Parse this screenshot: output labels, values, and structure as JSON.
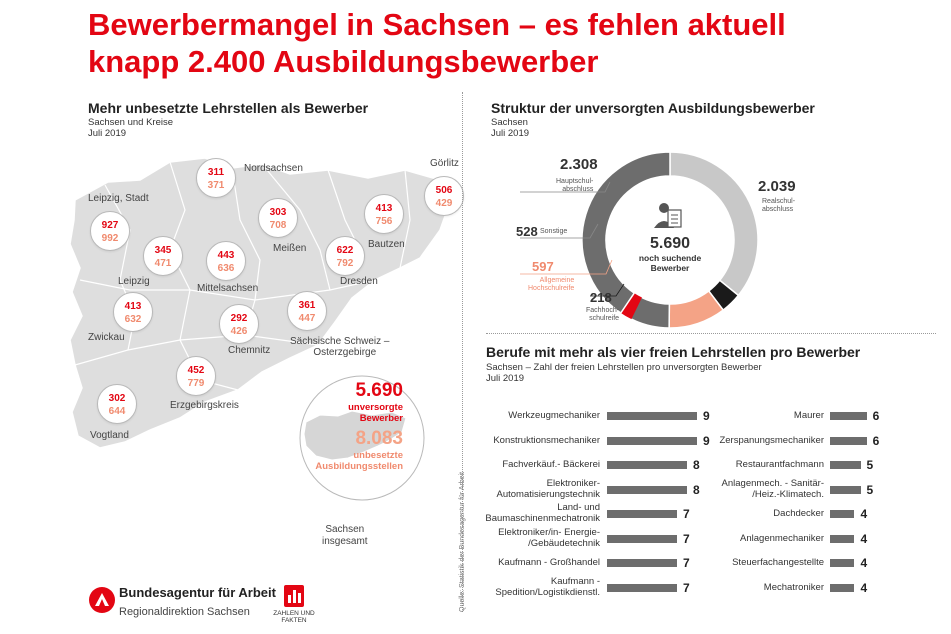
{
  "headline": {
    "line1": "Bewerbermangel in Sachsen – es fehlen aktuell",
    "line2": "knapp 2.400 Ausbildungsbewerber"
  },
  "left_section": {
    "title": "Mehr unbesetzte Lehrstellen als Bewerber",
    "subtitle1": "Sachsen und Kreise",
    "subtitle2": "Juli 2019",
    "regions": [
      {
        "name": "Nordsachsen",
        "bewerber": "311",
        "stellen": "371"
      },
      {
        "name": "Görlitz",
        "bewerber": "506",
        "stellen": "429"
      },
      {
        "name": "Leipzig, Stadt",
        "bewerber": "927",
        "stellen": "992"
      },
      {
        "name": "Meißen",
        "bewerber": "303",
        "stellen": "708"
      },
      {
        "name": "Bautzen",
        "bewerber": "413",
        "stellen": "756"
      },
      {
        "name": "Leipzig",
        "bewerber": "345",
        "stellen": "471"
      },
      {
        "name": "Mittelsachsen",
        "bewerber": "443",
        "stellen": "636"
      },
      {
        "name": "Dresden",
        "bewerber": "622",
        "stellen": "792"
      },
      {
        "name": "Zwickau",
        "bewerber": "413",
        "stellen": "632"
      },
      {
        "name": "Chemnitz",
        "bewerber": "292",
        "stellen": "426"
      },
      {
        "name": "Sächsische Schweiz – Osterzgebirge",
        "bewerber": "361",
        "stellen": "447"
      },
      {
        "name": "Erzgebirgskreis",
        "bewerber": "452",
        "stellen": "779"
      },
      {
        "name": "Vogtland",
        "bewerber": "302",
        "stellen": "644"
      }
    ],
    "label_ssog_1": "Sächsische Schweiz –",
    "label_ssog_2": "Osterzgebirge",
    "total": {
      "bewerber": "5.690",
      "bewerber_label1": "unversorgte",
      "bewerber_label2": "Bewerber",
      "stellen": "8.083",
      "stellen_label1": "unbesetzte",
      "stellen_label2": "Ausbildungsstellen",
      "region1": "Sachsen",
      "region2": "insgesamt"
    }
  },
  "source": "Quelle: Statistik der Bundesagentur für Arbeit",
  "logo": {
    "name": "Bundesagentur für Arbeit",
    "sub": "Regionaldirektion Sachsen",
    "zf1": "ZAHLEN UND",
    "zf2": "FAKTEN"
  },
  "colors": {
    "red": "#e30613",
    "pink": "#f4a386",
    "dark": "#6d6d6d",
    "light": "#c8c8c8",
    "black": "#1a1a1a"
  },
  "chart_data": [
    {
      "type": "pie",
      "title": "Struktur der unversorgten Ausbildungsbewerber",
      "subtitle1": "Sachsen",
      "subtitle2": "Juli 2019",
      "center_value": "5.690",
      "center_label1": "noch suchende",
      "center_label2": "Bewerber",
      "slices": [
        {
          "label1": "Realschul-",
          "label2": "abschluss",
          "value": 2039,
          "display": "2.039",
          "color": "#c8c8c8"
        },
        {
          "label1": "Fachhoch-",
          "label2": "schulreife",
          "value": 218,
          "display": "218",
          "color": "#1a1a1a"
        },
        {
          "label1": "Allgemeine",
          "label2": "Hochschulreife",
          "value": 597,
          "display": "597",
          "color": "#f4a386"
        },
        {
          "label1": "Sonstige",
          "label2": "",
          "value": 528,
          "display": "528",
          "color": "#6d6d6d"
        },
        {
          "label1": "Hauptschul-",
          "label2": "abschluss",
          "value": 2308,
          "display": "2.308",
          "color": "#6d6d6d"
        }
      ],
      "highlight": {
        "label": "red wedge",
        "color": "#e30613"
      }
    },
    {
      "type": "bar",
      "title": "Berufe mit mehr als vier freien Lehrstellen pro Bewerber",
      "subtitle1": "Sachsen – Zahl der freien Lehrstellen pro unversorgten Bewerber",
      "subtitle2": "Juli 2019",
      "xlim": [
        0,
        9
      ],
      "left": [
        {
          "l1": "Werkzeugmechaniker",
          "l2": "",
          "value": 9
        },
        {
          "l1": "Konstruktionsmechaniker",
          "l2": "",
          "value": 9
        },
        {
          "l1": "Fachverkäuf.- Bäckerei",
          "l2": "",
          "value": 8
        },
        {
          "l1": "Elektroniker-",
          "l2": "Automatisierungstechnik",
          "value": 8
        },
        {
          "l1": "Land- und",
          "l2": "Baumaschinenmechatronik",
          "value": 7
        },
        {
          "l1": "Elektroniker/in- Energie-",
          "l2": "/Gebäudetechnik",
          "value": 7
        },
        {
          "l1": "Kaufmann - Großhandel",
          "l2": "",
          "value": 7
        },
        {
          "l1": "Kaufmann -",
          "l2": "Spedition/Logistikdienstl.",
          "value": 7
        }
      ],
      "right": [
        {
          "l1": "Maurer",
          "l2": "",
          "value": 6
        },
        {
          "l1": "Zerspanungsmechaniker",
          "l2": "",
          "value": 6
        },
        {
          "l1": "Restaurantfachmann",
          "l2": "",
          "value": 5
        },
        {
          "l1": "Anlagenmech. - Sanitär-",
          "l2": "/Heiz.-Klimatech.",
          "value": 5
        },
        {
          "l1": "Dachdecker",
          "l2": "",
          "value": 4
        },
        {
          "l1": "Anlagenmechaniker",
          "l2": "",
          "value": 4
        },
        {
          "l1": "Steuerfachangestellte",
          "l2": "",
          "value": 4
        },
        {
          "l1": "Mechatroniker",
          "l2": "",
          "value": 4
        }
      ]
    }
  ]
}
